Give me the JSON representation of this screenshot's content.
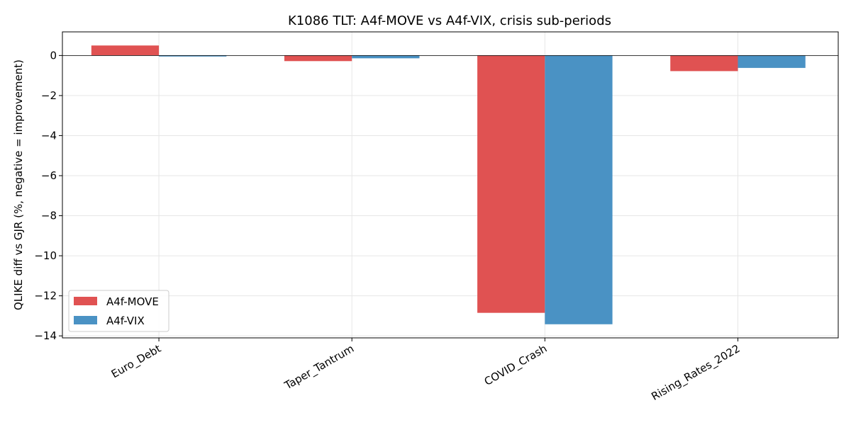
{
  "chart_data": {
    "type": "bar",
    "title": "K1086 TLT: A4f-MOVE vs A4f-VIX, crisis sub-periods",
    "xlabel": "",
    "ylabel": "QLIKE diff vs GJR (%, negative = improvement)",
    "categories": [
      "Euro_Debt",
      "Taper_Tantrum",
      "COVID_Crash",
      "Rising_Rates_2022"
    ],
    "series": [
      {
        "name": "A4f-MOVE",
        "color": "#e05252",
        "values": [
          0.5,
          -0.28,
          -12.85,
          -0.78
        ]
      },
      {
        "name": "A4f-VIX",
        "color": "#4a92c4",
        "values": [
          -0.05,
          -0.14,
          -13.42,
          -0.62
        ]
      }
    ],
    "ylim": [
      -14.1,
      1.18
    ],
    "yticks": [
      0,
      -2,
      -4,
      -6,
      -8,
      -10,
      -12,
      -14
    ],
    "ytick_labels": [
      "0",
      "−2",
      "−4",
      "−6",
      "−8",
      "−10",
      "−12",
      "−14"
    ],
    "grid": true,
    "zero_line": true,
    "legend_position": "lower-left"
  }
}
